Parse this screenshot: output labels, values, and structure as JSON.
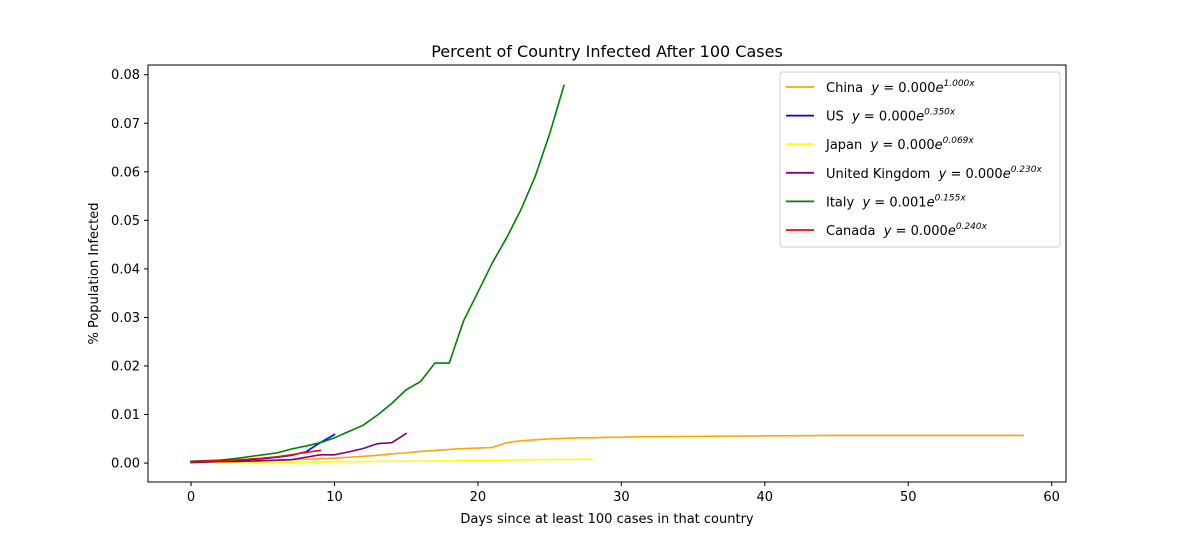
{
  "chart_data": {
    "type": "line",
    "title": "Percent of Country Infected After 100 Cases",
    "xlabel": "Days since at least 100 cases in that country",
    "ylabel": "% Population Infected",
    "xlim": [
      -3,
      61
    ],
    "ylim": [
      -0.0039,
      0.082
    ],
    "x_ticks": [
      0,
      10,
      20,
      30,
      40,
      50,
      60
    ],
    "x_tick_labels": [
      "0",
      "10",
      "20",
      "30",
      "40",
      "50",
      "60"
    ],
    "y_ticks": [
      0.0,
      0.01,
      0.02,
      0.03,
      0.04,
      0.05,
      0.06,
      0.07,
      0.08
    ],
    "y_tick_labels": [
      "0.00",
      "0.01",
      "0.02",
      "0.03",
      "0.04",
      "0.05",
      "0.06",
      "0.07",
      "0.08"
    ],
    "grid": false,
    "legend_position": "top-right",
    "series": [
      {
        "name": "China",
        "legend_prefix": "China  ",
        "equation": {
          "y": "y",
          "eq": " = ",
          "coef": "0.000",
          "base": "e",
          "exp": "1.000x"
        },
        "color": "#ffa500",
        "x": [
          0,
          1,
          2,
          3,
          4,
          5,
          6,
          7,
          8,
          9,
          10,
          11,
          12,
          13,
          14,
          15,
          16,
          17,
          18,
          19,
          20,
          21,
          22,
          23,
          24,
          25,
          26,
          27,
          28,
          29,
          30,
          31,
          35,
          40,
          45,
          50,
          55,
          58
        ],
        "y": [
          0.0002,
          0.0002,
          0.0003,
          0.0003,
          0.0004,
          0.0005,
          0.0006,
          0.0007,
          0.0008,
          0.0009,
          0.001,
          0.0012,
          0.0014,
          0.0016,
          0.0019,
          0.0021,
          0.0024,
          0.0026,
          0.0028,
          0.003,
          0.0031,
          0.0032,
          0.0042,
          0.0046,
          0.0048,
          0.005,
          0.0051,
          0.0052,
          0.0052,
          0.0053,
          0.0053,
          0.0054,
          0.0055,
          0.0056,
          0.0057,
          0.0057,
          0.0057,
          0.0057
        ]
      },
      {
        "name": "US",
        "legend_prefix": "US  ",
        "equation": {
          "y": "y",
          "eq": " = ",
          "coef": "0.000",
          "base": "e",
          "exp": "0.350x"
        },
        "color": "#0000ff",
        "x": [
          0,
          1,
          2,
          3,
          4,
          5,
          6,
          7,
          8,
          9,
          10
        ],
        "y": [
          0.0001,
          0.0002,
          0.0003,
          0.0005,
          0.0007,
          0.0009,
          0.0012,
          0.0016,
          0.0023,
          0.0042,
          0.0059
        ]
      },
      {
        "name": "Japan",
        "legend_prefix": "Japan  ",
        "equation": {
          "y": "y",
          "eq": " = ",
          "coef": "0.000",
          "base": "e",
          "exp": "0.069x"
        },
        "color": "#ffff00",
        "x": [
          0,
          4,
          8,
          12,
          16,
          20,
          24,
          28
        ],
        "y": [
          0.0001,
          0.00015,
          0.0002,
          0.0003,
          0.0004,
          0.0005,
          0.0007,
          0.0008
        ]
      },
      {
        "name": "United Kingdom",
        "legend_prefix": "United Kingdom  ",
        "equation": {
          "y": "y",
          "eq": " = ",
          "coef": "0.000",
          "base": "e",
          "exp": "0.230x"
        },
        "color": "#800080",
        "x": [
          0,
          1,
          2,
          3,
          4,
          5,
          6,
          7,
          8,
          9,
          10,
          11,
          12,
          13,
          14,
          15
        ],
        "y": [
          0.0001,
          0.0002,
          0.0003,
          0.0003,
          0.0004,
          0.0005,
          0.0006,
          0.0007,
          0.0012,
          0.0017,
          0.0017,
          0.0023,
          0.003,
          0.004,
          0.0042,
          0.0061
        ]
      },
      {
        "name": "Italy",
        "legend_prefix": "Italy  ",
        "equation": {
          "y": "y",
          "eq": " = ",
          "coef": "0.001",
          "base": "e",
          "exp": "0.155x"
        },
        "color": "#008000",
        "x": [
          0,
          1,
          2,
          3,
          4,
          5,
          6,
          7,
          8,
          9,
          10,
          11,
          12,
          13,
          14,
          15,
          16,
          17,
          18,
          19,
          20,
          21,
          22,
          23,
          24,
          25,
          26
        ],
        "y": [
          0.0004,
          0.0005,
          0.0006,
          0.0009,
          0.0013,
          0.0017,
          0.0021,
          0.0029,
          0.0035,
          0.0042,
          0.0052,
          0.0065,
          0.0078,
          0.0099,
          0.0123,
          0.0151,
          0.0168,
          0.0206,
          0.0206,
          0.0293,
          0.0352,
          0.0412,
          0.0464,
          0.0522,
          0.0591,
          0.0678,
          0.0778
        ]
      },
      {
        "name": "Canada",
        "legend_prefix": "Canada  ",
        "equation": {
          "y": "y",
          "eq": " = ",
          "coef": "0.000",
          "base": "e",
          "exp": "0.240x"
        },
        "color": "#ff0000",
        "x": [
          0,
          1,
          2,
          3,
          4,
          5,
          6,
          7,
          8,
          9
        ],
        "y": [
          0.0003,
          0.0004,
          0.0005,
          0.0006,
          0.0008,
          0.001,
          0.0013,
          0.0017,
          0.0022,
          0.0026
        ]
      }
    ]
  }
}
